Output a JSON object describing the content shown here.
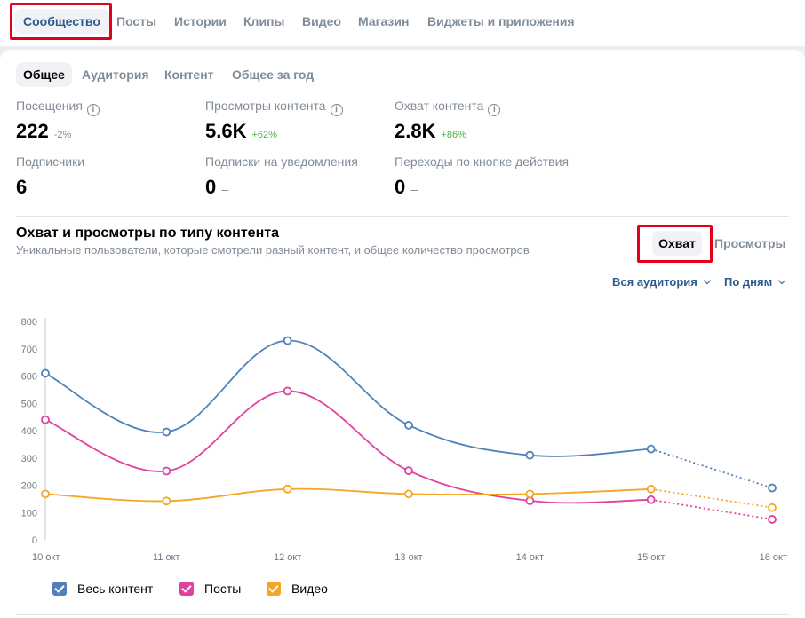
{
  "topnav": {
    "tabs": [
      "Сообщество",
      "Посты",
      "Истории",
      "Клипы",
      "Видео",
      "Магазин",
      "Виджеты и приложения"
    ]
  },
  "subtabs": [
    "Общее",
    "Аудитория",
    "Контент",
    "Общее за год"
  ],
  "stats": [
    {
      "label": "Посещения",
      "value": "222",
      "delta": "-2%",
      "info": true
    },
    {
      "label": "Просмотры контента",
      "value": "5.6K",
      "delta": "+62%",
      "info": true
    },
    {
      "label": "Охват контента",
      "value": "2.8K",
      "delta": "+86%",
      "info": true
    },
    {
      "label": "Подписчики",
      "value": "6",
      "delta": "",
      "info": false
    },
    {
      "label": "Подписки на уведомления",
      "value": "0",
      "delta": "–",
      "info": false
    },
    {
      "label": "Переходы по кнопке действия",
      "value": "0",
      "delta": "–",
      "info": false
    }
  ],
  "section": {
    "title": "Охват и просмотры по типу контента",
    "subtitle": "Уникальные пользователи, которые смотрели разный контент, и общее количество просмотров"
  },
  "segment": {
    "active": "Охват",
    "inactive": "Просмотры"
  },
  "filters": {
    "audience": "Вся аудитория",
    "period": "По дням"
  },
  "colors": {
    "all": "#5181b8",
    "posts": "#e040a0",
    "video": "#f5a623",
    "accent": "#2c5c8f"
  },
  "chart_data": {
    "type": "line",
    "categories": [
      "10 окт",
      "11 окт",
      "12 окт",
      "13 окт",
      "14 окт",
      "15 окт",
      "16 окт"
    ],
    "ylim": [
      0,
      800
    ],
    "yticks": [
      0,
      100,
      200,
      300,
      400,
      500,
      600,
      700,
      800
    ],
    "series": [
      {
        "name": "Весь контент",
        "values": [
          610,
          395,
          730,
          420,
          310,
          333,
          190
        ],
        "dotted_from": 5
      },
      {
        "name": "Посты",
        "values": [
          440,
          252,
          545,
          253,
          143,
          147,
          75
        ],
        "dotted_from": 5
      },
      {
        "name": "Видео",
        "values": [
          168,
          142,
          186,
          168,
          168,
          186,
          118
        ],
        "dotted_from": 5
      }
    ]
  }
}
